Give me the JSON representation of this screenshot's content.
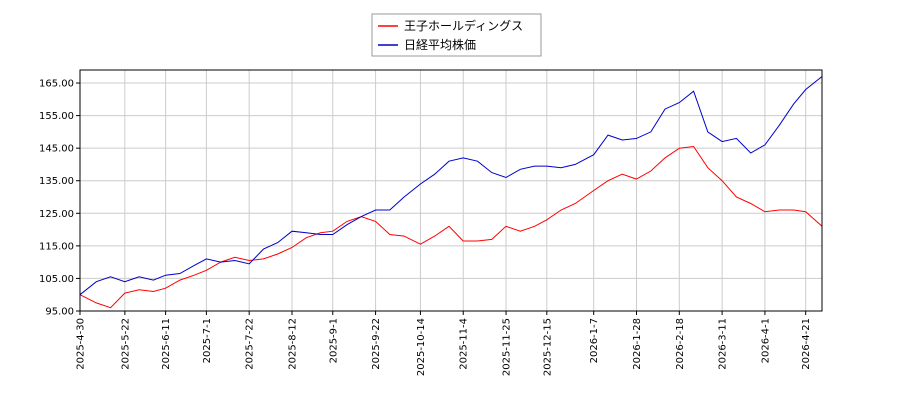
{
  "chart_data": {
    "type": "line",
    "title": "",
    "xlabel": "",
    "ylabel": "",
    "ylim": [
      95,
      169
    ],
    "yticks": [
      95.0,
      105.0,
      115.0,
      125.0,
      135.0,
      145.0,
      155.0,
      165.0
    ],
    "ytick_labels": [
      "95.00",
      "105.00",
      "115.00",
      "125.00",
      "135.00",
      "145.00",
      "155.00",
      "165.00"
    ],
    "xlim": [
      "2025-04-30",
      "2026-04-29"
    ],
    "xticks": [
      "2025-4-30",
      "2025-5-22",
      "2025-6-11",
      "2025-7-1",
      "2025-7-22",
      "2025-8-12",
      "2025-9-1",
      "2025-9-22",
      "2025-10-14",
      "2025-11-4",
      "2025-11-25",
      "2025-12-15",
      "2026-1-7",
      "2026-1-28",
      "2026-2-18",
      "2026-3-11",
      "2026-4-1",
      "2026-4-21"
    ],
    "grid": true,
    "legend_position": "top-center",
    "x": [
      "2025-04-30",
      "2025-05-08",
      "2025-05-15",
      "2025-05-22",
      "2025-05-29",
      "2025-06-05",
      "2025-06-11",
      "2025-06-18",
      "2025-06-25",
      "2025-07-01",
      "2025-07-08",
      "2025-07-15",
      "2025-07-22",
      "2025-07-29",
      "2025-08-05",
      "2025-08-12",
      "2025-08-19",
      "2025-08-26",
      "2025-09-01",
      "2025-09-08",
      "2025-09-15",
      "2025-09-22",
      "2025-09-29",
      "2025-10-06",
      "2025-10-14",
      "2025-10-21",
      "2025-10-28",
      "2025-11-04",
      "2025-11-11",
      "2025-11-18",
      "2025-11-25",
      "2025-12-02",
      "2025-12-09",
      "2025-12-15",
      "2025-12-22",
      "2025-12-29",
      "2026-01-07",
      "2026-01-14",
      "2026-01-21",
      "2026-01-28",
      "2026-02-04",
      "2026-02-11",
      "2026-02-18",
      "2026-02-25",
      "2026-03-04",
      "2026-03-11",
      "2026-03-18",
      "2026-03-25",
      "2026-04-01",
      "2026-04-08",
      "2026-04-15",
      "2026-04-21",
      "2026-04-29"
    ],
    "series": [
      {
        "name": "王子ホールディングス",
        "color": "#ff0000",
        "values": [
          100,
          97.5,
          96,
          100.5,
          101.5,
          101,
          102,
          104.5,
          106,
          107.5,
          110,
          111.5,
          110.5,
          111,
          112.5,
          114.5,
          117.5,
          119,
          119.5,
          122.5,
          124,
          122.5,
          118.5,
          118,
          115.5,
          118,
          121,
          116.5,
          116.5,
          117,
          121,
          119.5,
          121,
          123,
          126,
          128,
          132,
          135,
          137,
          135.5,
          138,
          142,
          145,
          145.5,
          139,
          135,
          130,
          128,
          125.5,
          126,
          126,
          125.5,
          121
        ]
      },
      {
        "name": "日経平均株価",
        "color": "#0000cc",
        "values": [
          100,
          104,
          105.5,
          104,
          105.5,
          104.5,
          106,
          106.5,
          109,
          111,
          110,
          110.5,
          109.5,
          114,
          116,
          119.5,
          119,
          118.5,
          118.5,
          121.5,
          124,
          126,
          126,
          130,
          134,
          137,
          141,
          142,
          141,
          137.5,
          136,
          138.5,
          139.5,
          139.5,
          139,
          140,
          143,
          149,
          147.5,
          148,
          150,
          157,
          159,
          162.5,
          150,
          147,
          148,
          143.5,
          146,
          152,
          158.5,
          163,
          167
        ]
      }
    ]
  }
}
